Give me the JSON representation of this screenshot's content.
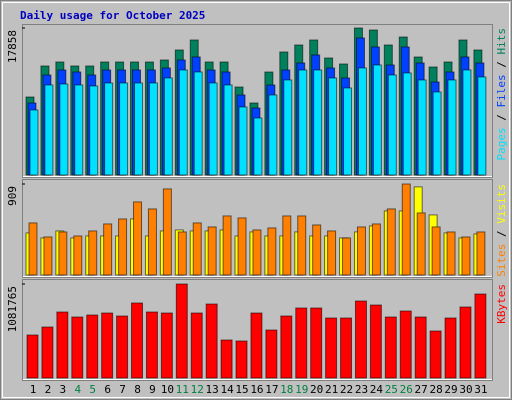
{
  "chart_data": [
    {
      "type": "bar",
      "title": "Daily usage for October 2025",
      "ylim": [
        0,
        17858
      ],
      "yticks": [
        17858
      ],
      "legend_separator": " / ",
      "series": [
        {
          "name": "Hits",
          "color": "#00805c",
          "values": [
            9476,
            13243,
            13729,
            13243,
            13243,
            13729,
            13729,
            13729,
            13729,
            13972,
            15187,
            16401,
            13729,
            13729,
            10691,
            8747,
            12513,
            14943,
            15793,
            16401,
            14214,
            13486,
            17858,
            17615,
            15793,
            16765,
            14335,
            13121,
            13729,
            16401,
            15187
          ]
        },
        {
          "name": "Files",
          "color": "#0040ff",
          "values": [
            8748,
            12150,
            12758,
            12515,
            12150,
            12758,
            12758,
            12758,
            12758,
            13001,
            13973,
            14337,
            12758,
            12515,
            9720,
            8141,
            10935,
            12758,
            13608,
            14580,
            13001,
            11786,
            16646,
            15552,
            13365,
            15552,
            13608,
            11300,
            12515,
            14337,
            13608
          ]
        },
        {
          "name": "Pages",
          "color": "#00e0ff",
          "values": [
            7898,
            10935,
            11057,
            10935,
            10814,
            11178,
            11178,
            11178,
            11178,
            11786,
            12758,
            12515,
            11178,
            10935,
            8262,
            6926,
            9720,
            11543,
            12758,
            12758,
            11786,
            10571,
            13001,
            13365,
            12150,
            12393,
            11543,
            10085,
            11543,
            12758,
            11907
          ]
        }
      ]
    },
    {
      "type": "bar",
      "ylim": [
        0,
        909
      ],
      "yticks": [
        909
      ],
      "legend_separator": " / ",
      "series": [
        {
          "name": "Visits",
          "color": "#ffff00",
          "values": [
            420,
            370,
            440,
            370,
            390,
            390,
            390,
            560,
            390,
            440,
            450,
            440,
            440,
            450,
            390,
            430,
            390,
            390,
            430,
            390,
            390,
            370,
            430,
            490,
            640,
            640,
            880,
            600,
            420,
            370,
            410
          ]
        },
        {
          "name": "Sites",
          "color": "#ff8000",
          "values": [
            520,
            380,
            430,
            390,
            440,
            510,
            560,
            730,
            660,
            860,
            430,
            520,
            480,
            590,
            570,
            450,
            470,
            590,
            590,
            500,
            440,
            370,
            480,
            510,
            660,
            909,
            620,
            480,
            430,
            380,
            430
          ]
        }
      ]
    },
    {
      "type": "bar",
      "ylim": [
        0,
        1081765
      ],
      "yticks": [
        1081765
      ],
      "categories": [
        "1",
        "2",
        "3",
        "4",
        "5",
        "6",
        "7",
        "8",
        "9",
        "10",
        "11",
        "12",
        "13",
        "14",
        "15",
        "16",
        "17",
        "18",
        "19",
        "20",
        "21",
        "22",
        "23",
        "24",
        "25",
        "26",
        "27",
        "28",
        "29",
        "30",
        "31"
      ],
      "category_colors": [
        "#000000",
        "#000000",
        "#000000",
        "#008040",
        "#008040",
        "#000000",
        "#000000",
        "#000000",
        "#000000",
        "#000000",
        "#008040",
        "#008040",
        "#000000",
        "#000000",
        "#000000",
        "#000000",
        "#000000",
        "#008040",
        "#008040",
        "#000000",
        "#000000",
        "#000000",
        "#000000",
        "#000000",
        "#008040",
        "#008040",
        "#000000",
        "#000000",
        "#000000",
        "#000000",
        "#000000"
      ],
      "series": [
        {
          "name": "KBytes",
          "color": "#ff0000",
          "values": [
            494844,
            586908,
            759528,
            701988,
            725004,
            748020,
            713496,
            863100,
            759528,
            748020,
            1081765,
            748020,
            851592,
            437304,
            425796,
            748020,
            552384,
            713496,
            805560,
            805560,
            690480,
            690480,
            886116,
            840084,
            701988,
            771036,
            701988,
            540876,
            690480,
            817068,
            966672
          ]
        }
      ]
    }
  ]
}
